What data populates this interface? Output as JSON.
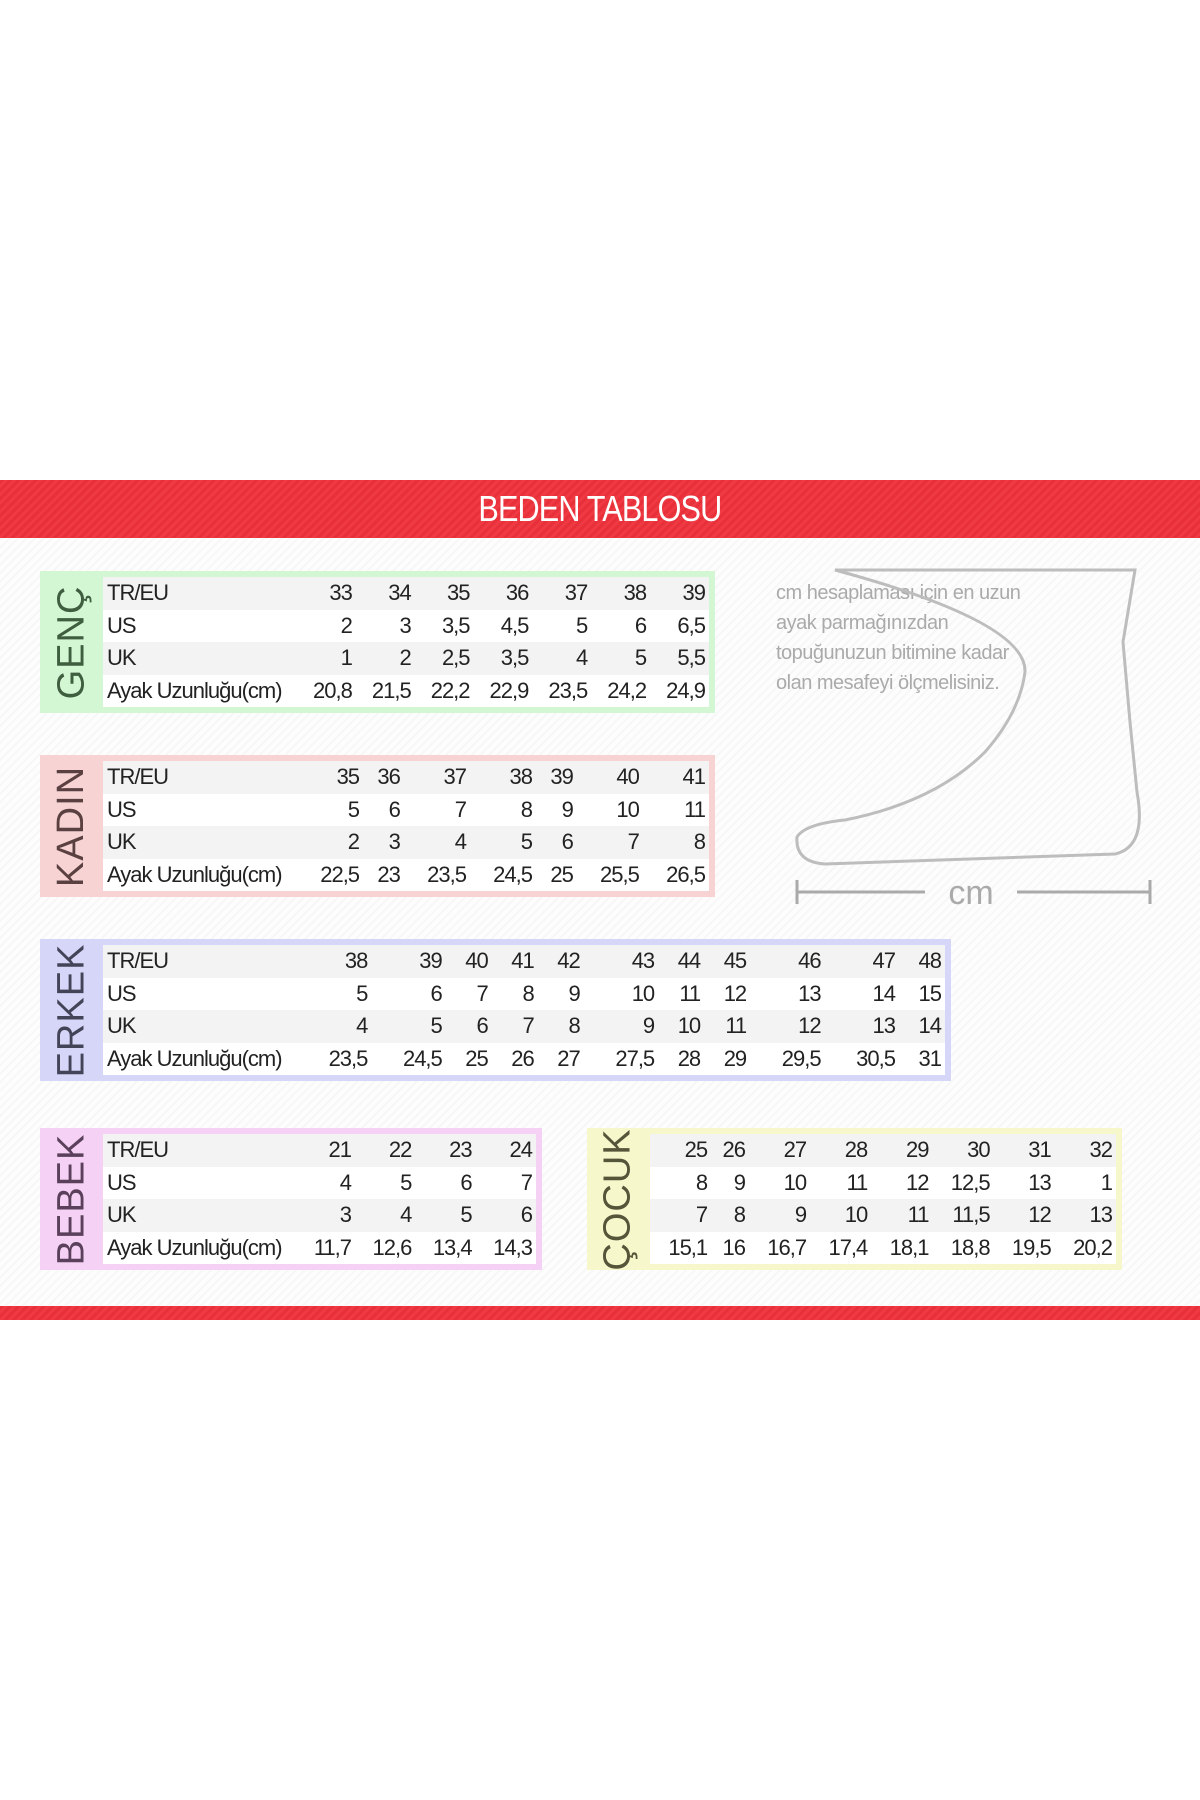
{
  "title": "BEDEN TABLOSU",
  "note": "cm hesaplaması için en uzun ayak parmağınızdan topuğunuzun bitimine kadar olan mesafeyi ölçmelisiniz.",
  "foot_label": "cm",
  "colors": {
    "banner": "#ec343e",
    "genc": "#d3f6d3",
    "kadin": "#f7d3d3",
    "erkek": "#d6d6f8",
    "bebek": "#f5d2f5",
    "cocuk": "#f7f7cc"
  },
  "tables": {
    "genc": {
      "label": "GENÇ",
      "rows": [
        {
          "name": "TR/EU",
          "values": [
            "33",
            "34",
            "35",
            "36",
            "37",
            "38",
            "39"
          ]
        },
        {
          "name": "US",
          "values": [
            "2",
            "3",
            "3,5",
            "4,5",
            "5",
            "6",
            "6,5"
          ]
        },
        {
          "name": "UK",
          "values": [
            "1",
            "2",
            "2,5",
            "3,5",
            "4",
            "5",
            "5,5"
          ]
        },
        {
          "name": "Ayak Uzunluğu(cm)",
          "values": [
            "20,8",
            "21,5",
            "22,2",
            "22,9",
            "23,5",
            "24,2",
            "24,9"
          ]
        }
      ]
    },
    "kadin": {
      "label": "KADIN",
      "rows": [
        {
          "name": "TR/EU",
          "values": [
            "35",
            "36",
            "37",
            "38",
            "39",
            "40",
            "41"
          ]
        },
        {
          "name": "US",
          "values": [
            "5",
            "6",
            "7",
            "8",
            "9",
            "10",
            "11"
          ]
        },
        {
          "name": "UK",
          "values": [
            "2",
            "3",
            "4",
            "5",
            "6",
            "7",
            "8"
          ]
        },
        {
          "name": "Ayak Uzunluğu(cm)",
          "values": [
            "22,5",
            "23",
            "23,5",
            "24,5",
            "25",
            "25,5",
            "26,5"
          ]
        }
      ]
    },
    "erkek": {
      "label": "ERKEK",
      "rows": [
        {
          "name": "TR/EU",
          "values": [
            "38",
            "39",
            "40",
            "41",
            "42",
            "43",
            "44",
            "45",
            "46",
            "47",
            "48"
          ]
        },
        {
          "name": "US",
          "values": [
            "5",
            "6",
            "7",
            "8",
            "9",
            "10",
            "11",
            "12",
            "13",
            "14",
            "15"
          ]
        },
        {
          "name": "UK",
          "values": [
            "4",
            "5",
            "6",
            "7",
            "8",
            "9",
            "10",
            "11",
            "12",
            "13",
            "14"
          ]
        },
        {
          "name": "Ayak Uzunluğu(cm)",
          "values": [
            "23,5",
            "24,5",
            "25",
            "26",
            "27",
            "27,5",
            "28",
            "29",
            "29,5",
            "30,5",
            "31"
          ]
        }
      ]
    },
    "bebek": {
      "label": "BEBEK",
      "rows": [
        {
          "name": "TR/EU",
          "values": [
            "21",
            "22",
            "23",
            "24"
          ]
        },
        {
          "name": "US",
          "values": [
            "4",
            "5",
            "6",
            "7"
          ]
        },
        {
          "name": "UK",
          "values": [
            "3",
            "4",
            "5",
            "6"
          ]
        },
        {
          "name": "Ayak Uzunluğu(cm)",
          "values": [
            "11,7",
            "12,6",
            "13,4",
            "14,3"
          ]
        }
      ]
    },
    "cocuk": {
      "label": "ÇOCUK",
      "rows": [
        {
          "values": [
            "25",
            "26",
            "27",
            "28",
            "29",
            "30",
            "31",
            "32"
          ]
        },
        {
          "values": [
            "8",
            "9",
            "10",
            "11",
            "12",
            "12,5",
            "13",
            "1"
          ]
        },
        {
          "values": [
            "7",
            "8",
            "9",
            "10",
            "11",
            "11,5",
            "12",
            "13"
          ]
        },
        {
          "values": [
            "15,1",
            "16",
            "16,7",
            "17,4",
            "18,1",
            "18,8",
            "19,5",
            "20,2"
          ]
        }
      ]
    }
  }
}
